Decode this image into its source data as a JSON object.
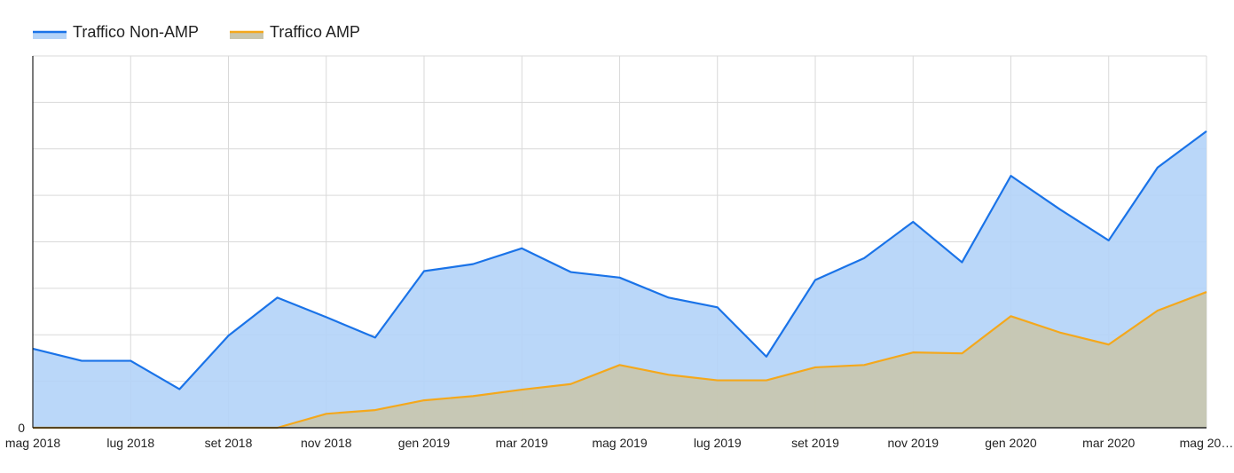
{
  "chart_data": {
    "type": "area",
    "title": "",
    "xlabel": "",
    "ylabel": "",
    "x_tick_labels": [
      "mag 2018",
      "lug 2018",
      "set 2018",
      "nov 2018",
      "gen 2019",
      "mar 2019",
      "mag 2019",
      "lug 2019",
      "set 2019",
      "nov 2019",
      "gen 2020",
      "mar 2020",
      "mag 20…"
    ],
    "y_tick_labels": [
      "0"
    ],
    "ylim": [
      0,
      8
    ],
    "grid": true,
    "legend_position": "top-left",
    "x": [
      "mag 2018",
      "giu 2018",
      "lug 2018",
      "ago 2018",
      "set 2018",
      "ott 2018",
      "nov 2018",
      "dic 2018",
      "gen 2019",
      "feb 2019",
      "mar 2019",
      "apr 2019",
      "mag 2019",
      "giu 2019",
      "lug 2019",
      "ago 2019",
      "set 2019",
      "ott 2019",
      "nov 2019",
      "dic 2019",
      "gen 2020",
      "feb 2020",
      "mar 2020",
      "apr 2020",
      "mag 2020"
    ],
    "series": [
      {
        "name": "Traffico Non-AMP",
        "color": "#1a73e8",
        "fill": "#b3d3f8",
        "values": [
          1.7,
          1.44,
          1.44,
          0.83,
          1.98,
          2.8,
          2.38,
          1.94,
          3.37,
          3.52,
          3.86,
          3.35,
          3.23,
          2.8,
          2.59,
          1.53,
          3.18,
          3.65,
          4.43,
          3.56,
          5.42,
          4.7,
          4.03,
          5.6,
          6.38
        ]
      },
      {
        "name": "Traffico AMP",
        "color": "#f4a81c",
        "fill": "#c9c6ad",
        "values": [
          0,
          0,
          0,
          0,
          0,
          0,
          0.3,
          0.38,
          0.59,
          0.68,
          0.82,
          0.94,
          1.35,
          1.14,
          1.02,
          1.02,
          1.3,
          1.35,
          1.62,
          1.6,
          2.4,
          2.05,
          1.79,
          2.52,
          2.92
        ]
      }
    ]
  }
}
